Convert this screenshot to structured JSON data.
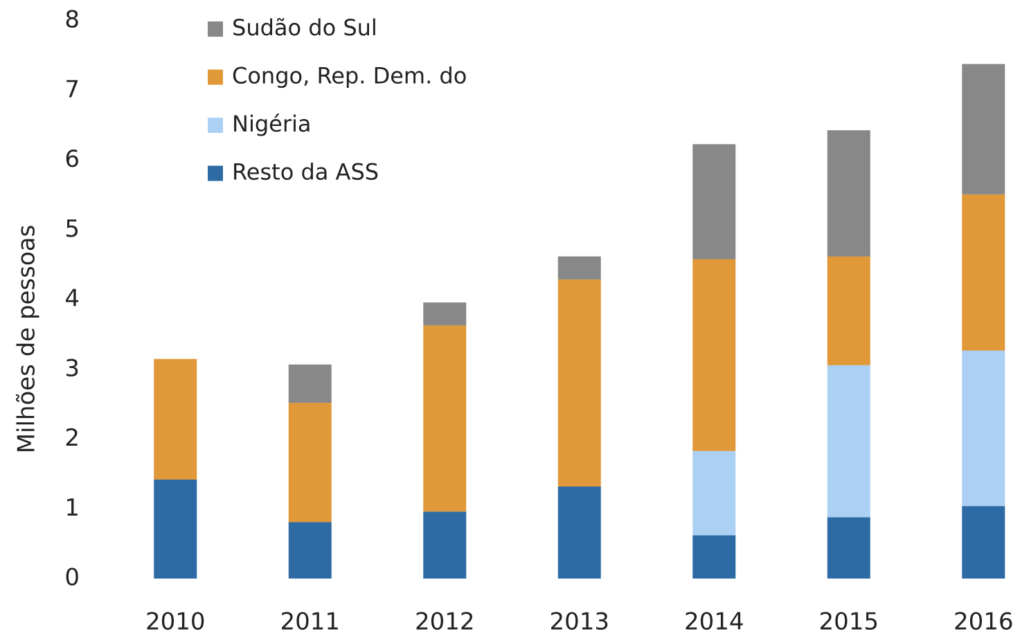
{
  "chart_data": {
    "type": "stacked_bar",
    "y_label": "Milhões de pessoas",
    "categories": [
      "2010",
      "2011",
      "2012",
      "2013",
      "2014",
      "2015",
      "2016"
    ],
    "series": [
      {
        "name": "Resto da ASS",
        "color": "#2e6aa3",
        "values": [
          1.42,
          0.81,
          0.96,
          1.32,
          0.62,
          0.88,
          1.04
        ]
      },
      {
        "name": "Nigéria",
        "color": "#abd0f3",
        "values": [
          0,
          0,
          0,
          0,
          1.21,
          2.18,
          2.23
        ]
      },
      {
        "name": "Congo, Rep. Dem. do",
        "color": "#e09838",
        "values": [
          1.73,
          1.71,
          2.67,
          2.97,
          2.75,
          1.56,
          2.24
        ]
      },
      {
        "name": "Sudão do Sul",
        "color": "#888888",
        "values": [
          0,
          0.55,
          0.33,
          0.33,
          1.65,
          1.81,
          1.87
        ]
      }
    ],
    "ylim": [
      0,
      8
    ],
    "yticks": [
      0,
      1,
      2,
      3,
      4,
      5,
      6,
      7,
      8
    ],
    "grid": false,
    "legend": "top-left"
  }
}
